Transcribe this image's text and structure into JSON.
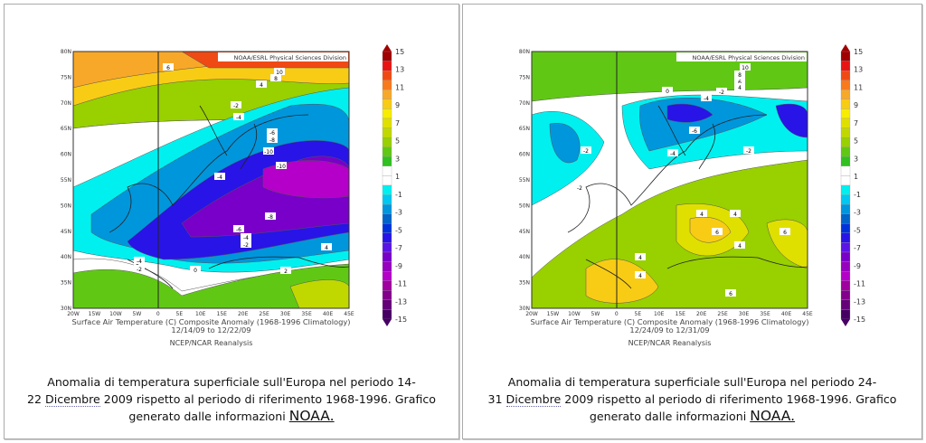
{
  "maps": [
    {
      "credit": "NOAA/ESRL Physical Sciences Division",
      "title": "Surface Air Temperature (C) Composite Anomaly (1968-1996 Climatology)",
      "dates": "12/14/09  to 12/22/09",
      "source": "NCEP/NCAR Reanalysis",
      "contour_labels": [
        "6",
        "10",
        "8",
        "4",
        "-2",
        "-4",
        "-6",
        "-8",
        "-10",
        "-10",
        "-4",
        "-8",
        "-6",
        "-4",
        "-2",
        "-4",
        "-2",
        "0",
        "2",
        "4"
      ],
      "caption": {
        "line1": "Anomalia di temperatura superficiale sull'Europa nel periodo 14-",
        "line2_pre": "22 ",
        "line2_term": "Dicembre",
        "line2_post": " 2009 rispetto al periodo di riferimento 1968-1996. Grafico",
        "line3": "generato dalle informazioni ",
        "link": "NOAA."
      }
    },
    {
      "credit": "NOAA/ESRL Physical Sciences Division",
      "title": "Surface Air Temperature (C) Composite Anomaly (1968-1996 Climatology)",
      "dates": "12/24/09  to 12/31/09",
      "source": "NCEP/NCAR Reanalysis",
      "contour_labels": [
        "10",
        "8",
        "6",
        "4",
        "0",
        "-4",
        "-2",
        "-6",
        "-4",
        "-2",
        "-2",
        "-2",
        "4",
        "4",
        "6",
        "4",
        "6",
        "4",
        "4",
        "6"
      ],
      "caption": {
        "line1": "Anomalia di temperatura superficiale sull'Europa nel periodo 24-",
        "line2_pre": "31 ",
        "line2_term": "Dicembre",
        "line2_post": " 2009 rispetto al periodo di riferimento 1968-1996. Grafico",
        "line3": "generato dalle informazioni ",
        "link": "NOAA."
      }
    }
  ],
  "lat_ticks": [
    "80N",
    "75N",
    "70N",
    "65N",
    "60N",
    "55N",
    "50N",
    "45N",
    "40N",
    "35N",
    "30N"
  ],
  "lon_ticks": [
    "20W",
    "15W",
    "10W",
    "5W",
    "0",
    "5E",
    "10E",
    "15E",
    "20E",
    "25E",
    "30E",
    "35E",
    "40E",
    "45E"
  ],
  "colorbar": {
    "labels": [
      "15",
      "13",
      "11",
      "9",
      "7",
      "5",
      "3",
      "1",
      "-1",
      "-3",
      "-5",
      "-7",
      "-9",
      "-11",
      "-13",
      "-15"
    ],
    "colors": [
      "#a00000",
      "#e81414",
      "#f04a14",
      "#f87a1e",
      "#f8a828",
      "#f8cc14",
      "#f8ec00",
      "#e0e000",
      "#c0d800",
      "#98d000",
      "#60c814",
      "#30c020",
      "#ffffff",
      "#ffffff",
      "#00f0f0",
      "#00c8f0",
      "#0096dc",
      "#0064c8",
      "#0032dc",
      "#2814e6",
      "#5a14e6",
      "#7800c8",
      "#9600be",
      "#b400c8",
      "#a000a0",
      "#82008c",
      "#640078",
      "#460064"
    ]
  }
}
